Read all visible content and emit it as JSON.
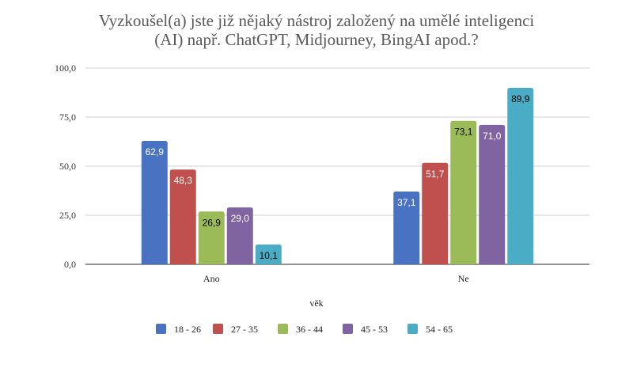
{
  "chart_data": {
    "type": "bar",
    "title_line1": "Vyzkoušel(a) jste již nějaký nástroj založený na umělé inteligenci",
    "title_line2": "(AI) např. ChatGPT, Midjourney, BingAI apod.?",
    "xlabel": "věk",
    "ylabel": "",
    "categories": [
      "Ano",
      "Ne"
    ],
    "ylim": [
      0,
      100
    ],
    "yticks": [
      0,
      25,
      50,
      75,
      100
    ],
    "ytick_labels": [
      "0,0",
      "25,0",
      "50,0",
      "75,0",
      "100,0"
    ],
    "grid": true,
    "legend_position": "bottom",
    "series": [
      {
        "name": "18 - 26",
        "color": "#4a72c2",
        "values": [
          62.9,
          37.1
        ],
        "labels": [
          "62,9",
          "37,1"
        ],
        "label_color": "#ffffff"
      },
      {
        "name": "27 - 35",
        "color": "#c0504d",
        "values": [
          48.3,
          51.7
        ],
        "labels": [
          "48,3",
          "51,7"
        ],
        "label_color": "#ffffff"
      },
      {
        "name": "36 - 44",
        "color": "#9bbb59",
        "values": [
          26.9,
          73.1
        ],
        "labels": [
          "26,9",
          "73,1"
        ],
        "label_color": "#000000"
      },
      {
        "name": "45 - 53",
        "color": "#8064a2",
        "values": [
          29.0,
          71.0
        ],
        "labels": [
          "29,0",
          "71,0"
        ],
        "label_color": "#ffffff"
      },
      {
        "name": "54 - 65",
        "color": "#4bacc6",
        "values": [
          10.1,
          89.9
        ],
        "labels": [
          "10,1",
          "89,9"
        ],
        "label_color": "#000000"
      }
    ]
  }
}
